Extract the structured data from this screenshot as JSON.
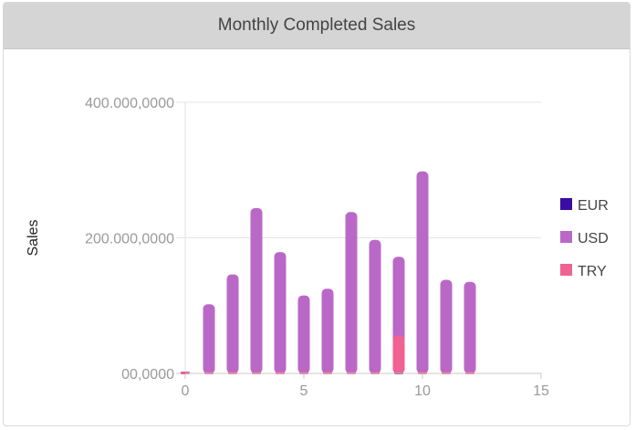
{
  "panel": {
    "title": "Monthly Completed Sales"
  },
  "chart_data": {
    "type": "bar",
    "title": "Monthly Completed Sales",
    "xlabel": "",
    "ylabel": "Sales",
    "xlim": [
      0,
      15
    ],
    "ylim": [
      0,
      4000000000
    ],
    "xticks": [
      0,
      5,
      10,
      15
    ],
    "xtick_labels": [
      "0",
      "5",
      "10",
      "15"
    ],
    "yticks": [
      0,
      2000000000,
      4000000000
    ],
    "ytick_labels": [
      "00,0000",
      "200.000,0000",
      "400.000,0000"
    ],
    "grid": true,
    "legend_position": "right",
    "x": [
      0,
      1,
      2,
      3,
      4,
      5,
      6,
      7,
      8,
      9,
      10,
      11,
      12
    ],
    "series": [
      {
        "name": "EUR",
        "color": "#3a0ca3",
        "values": [
          0,
          0,
          0,
          0,
          0,
          0,
          0,
          0,
          0,
          0,
          0,
          0,
          0
        ]
      },
      {
        "name": "USD",
        "color": "#ba68c8",
        "values": [
          0,
          1020000000,
          1460000000,
          2440000000,
          1790000000,
          1150000000,
          1250000000,
          2380000000,
          1970000000,
          1720000000,
          2980000000,
          1380000000,
          1350000000
        ]
      },
      {
        "name": "TRY",
        "color": "#f06292",
        "values": [
          0,
          0,
          0,
          0,
          0,
          0,
          0,
          0,
          0,
          560000000,
          0,
          0,
          0
        ]
      }
    ]
  }
}
